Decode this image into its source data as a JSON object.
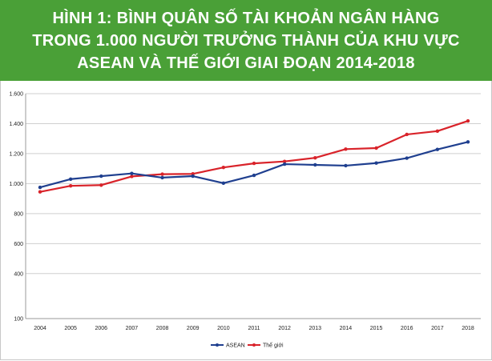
{
  "header": {
    "line1": "HÌNH 1: BÌNH QUÂN SỐ TÀI KHOẢN NGÂN HÀNG",
    "line2": "TRONG 1.000 NGƯỜI TRƯỞNG THÀNH CỦA KHU VỰC",
    "line3": "ASEAN VÀ THẾ GIỚI GIAI ĐOẠN 2014-2018"
  },
  "colors": {
    "banner": "#4aa037",
    "asean": "#1f3f8f",
    "world": "#d9232a"
  },
  "chart_data": {
    "type": "line",
    "title": "HÌNH 1: BÌNH QUÂN SỐ TÀI KHOẢN NGÂN HÀNG TRONG 1.000 NGƯỜI TRƯỞNG THÀNH CỦA KHU VỰC ASEAN VÀ THẾ GIỚI GIAI ĐOẠN 2014-2018",
    "xlabel": "",
    "ylabel": "",
    "categories": [
      "2004",
      "2005",
      "2006",
      "2007",
      "2008",
      "2009",
      "2010",
      "2011",
      "2012",
      "2013",
      "2014",
      "2015",
      "2016",
      "2017",
      "2018"
    ],
    "ylim": [
      100,
      1600
    ],
    "yticks": [
      100,
      400,
      600,
      800,
      1000,
      1200,
      1400,
      1600
    ],
    "ytick_labels": [
      "100",
      "400",
      "600",
      "800",
      "1.000",
      "1.200",
      "1.400",
      "1.600"
    ],
    "grid": "horizontal",
    "legend": "bottom-center",
    "series": [
      {
        "name": "ASEAN",
        "values": [
          975,
          1030,
          1050,
          1068,
          1040,
          1050,
          1003,
          1055,
          1130,
          1125,
          1120,
          1137,
          1170,
          1228,
          1278
        ]
      },
      {
        "name": "Thế giới",
        "values": [
          945,
          985,
          990,
          1048,
          1063,
          1065,
          1108,
          1135,
          1148,
          1172,
          1230,
          1237,
          1328,
          1350,
          1418
        ]
      }
    ]
  }
}
